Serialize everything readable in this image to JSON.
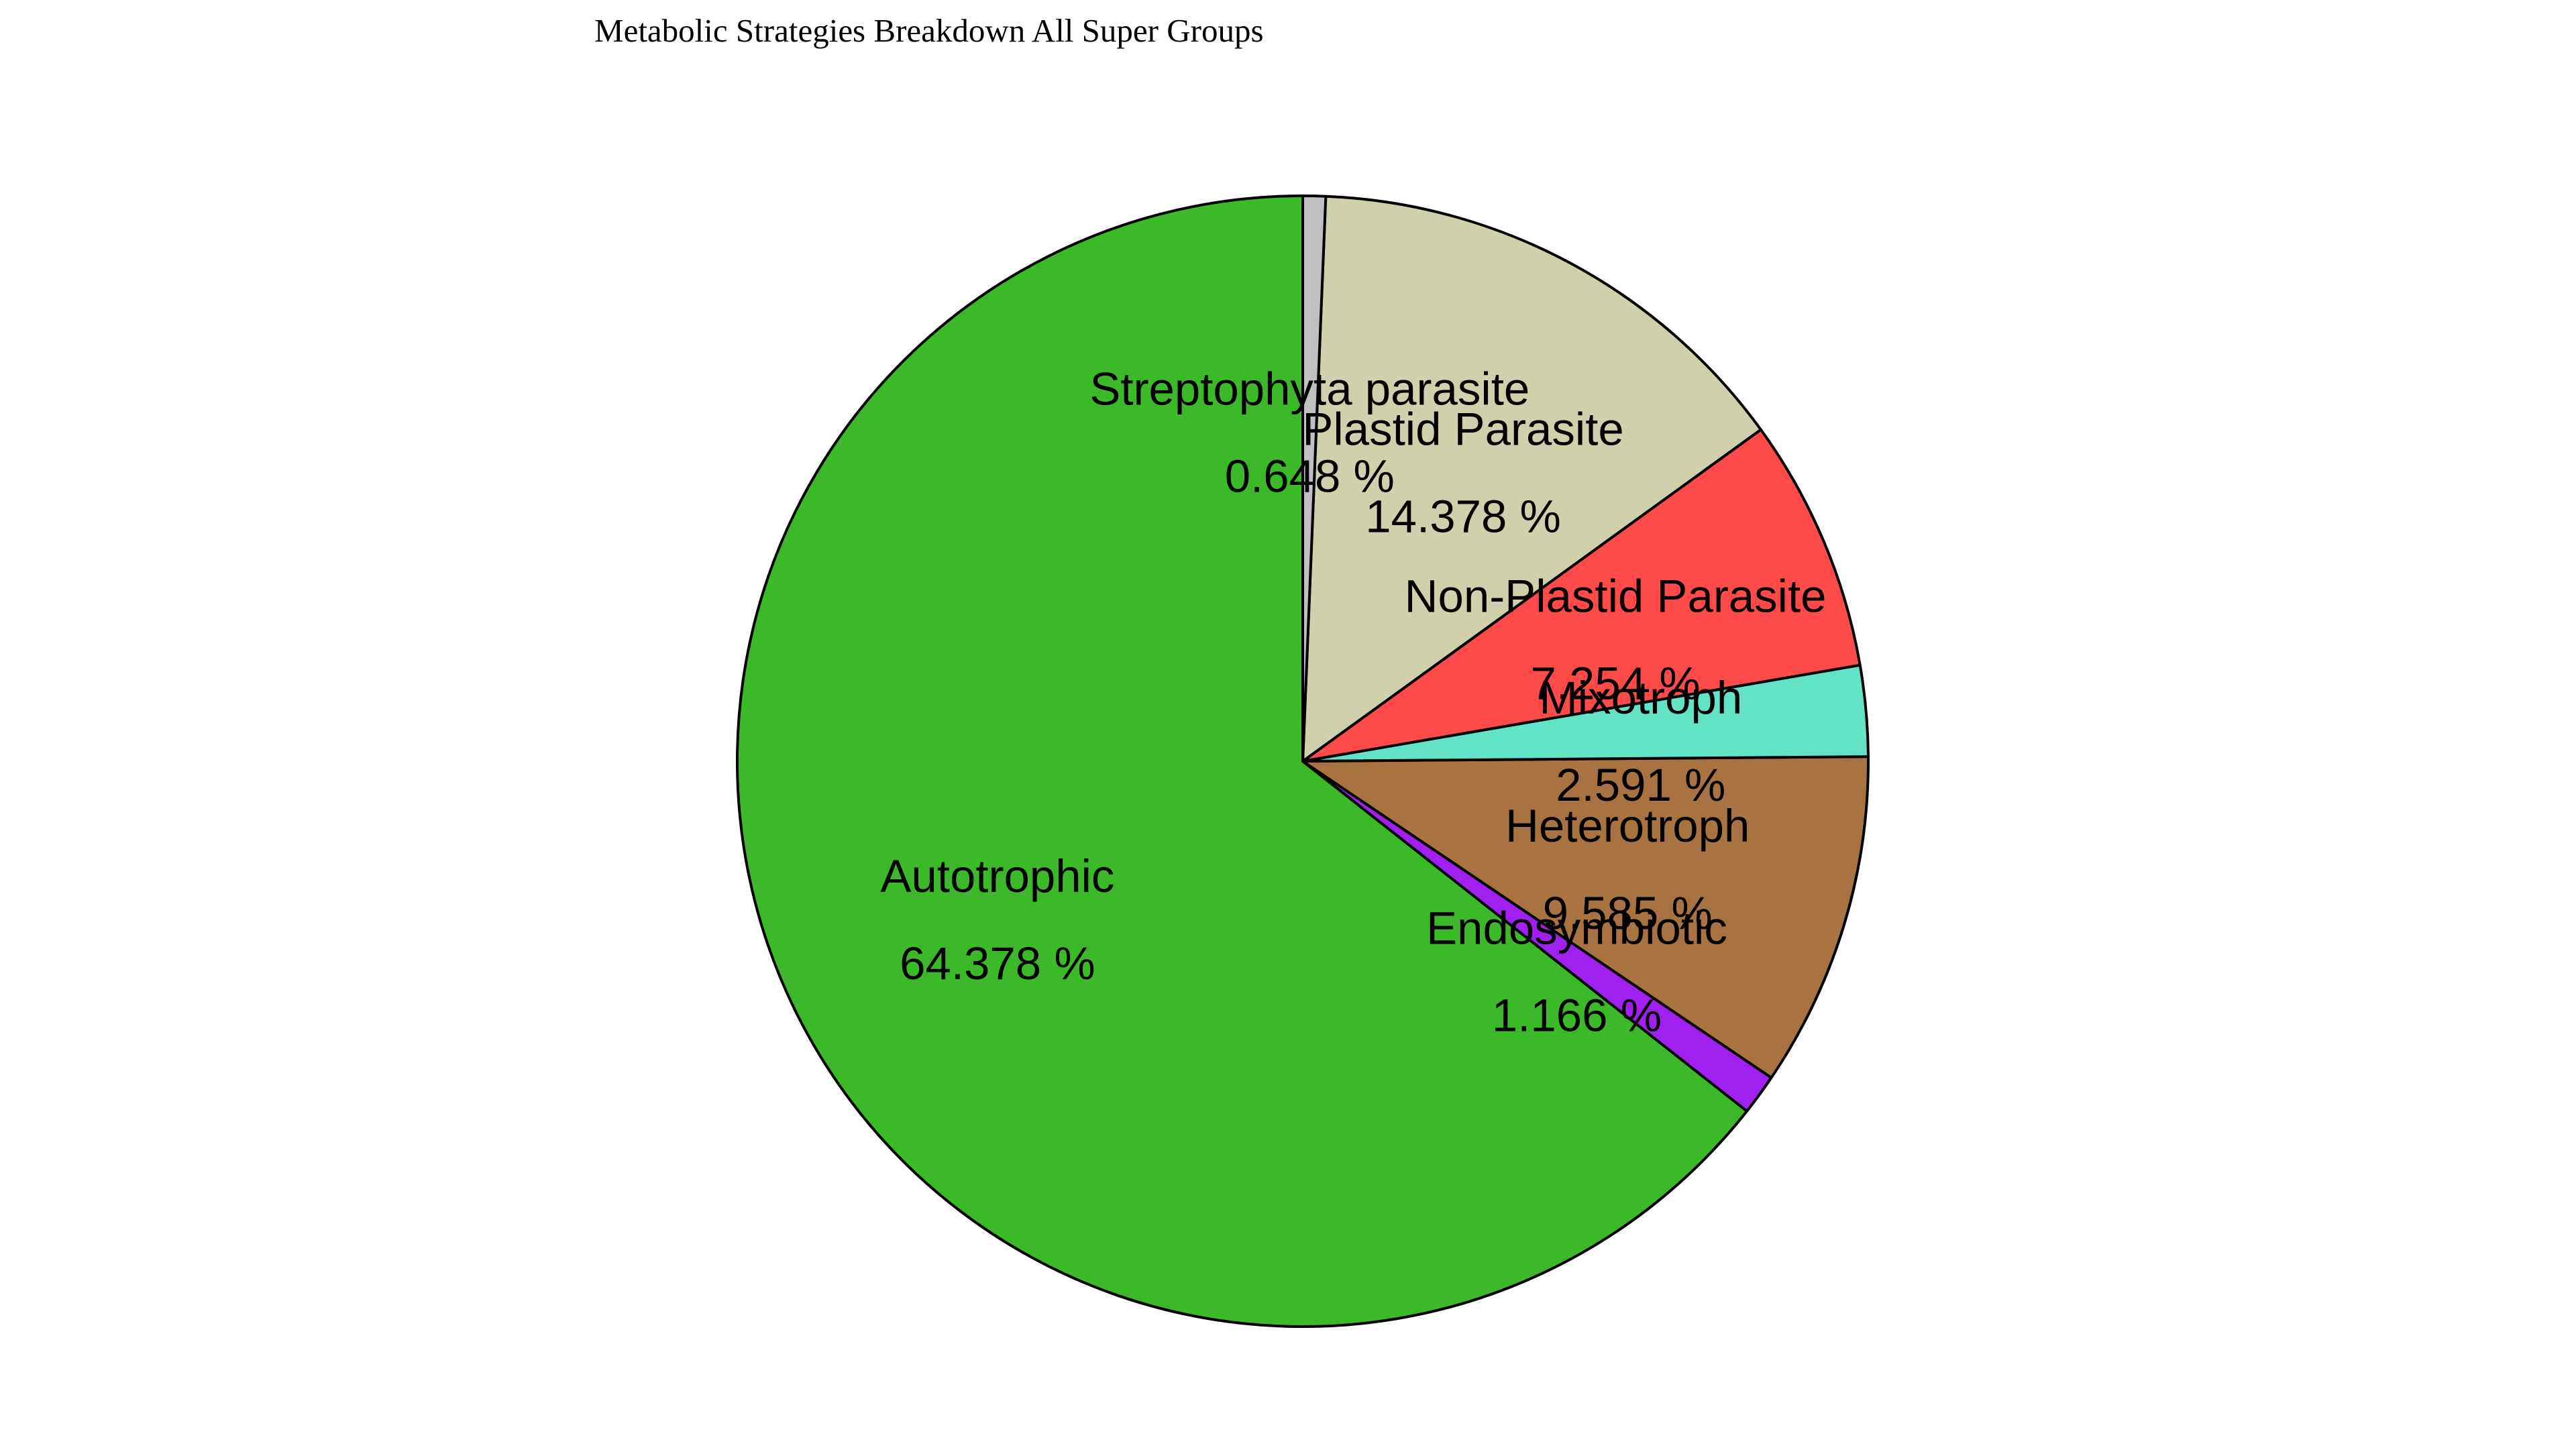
{
  "chart_data": {
    "type": "pie",
    "title": "Metabolic Strategies Breakdown All Super Groups",
    "start_angle_deg": 90,
    "direction": "counterclockwise",
    "slices": [
      {
        "label": "Autotrophic",
        "value": 64.378,
        "pct_text": "64.378 %",
        "color": "#3cb928"
      },
      {
        "label": "Endosymbiotic",
        "value": 1.166,
        "pct_text": "1.166 %",
        "color": "#a020f0"
      },
      {
        "label": "Heterotroph",
        "value": 9.585,
        "pct_text": "9.585 %",
        "color": "#a87241"
      },
      {
        "label": "Mixotroph",
        "value": 2.591,
        "pct_text": "2.591 %",
        "color": "#62e3c5"
      },
      {
        "label": "Non-Plastid Parasite",
        "value": 7.254,
        "pct_text": "7.254 %",
        "color": "#ff4a4a"
      },
      {
        "label": "Plastid Parasite",
        "value": 14.378,
        "pct_text": "14.378 %",
        "color": "#d0d0ac"
      },
      {
        "label": "Streptophyta parasite",
        "value": 0.648,
        "pct_text": "0.648 %",
        "color": "#c0c0c0"
      }
    ]
  }
}
